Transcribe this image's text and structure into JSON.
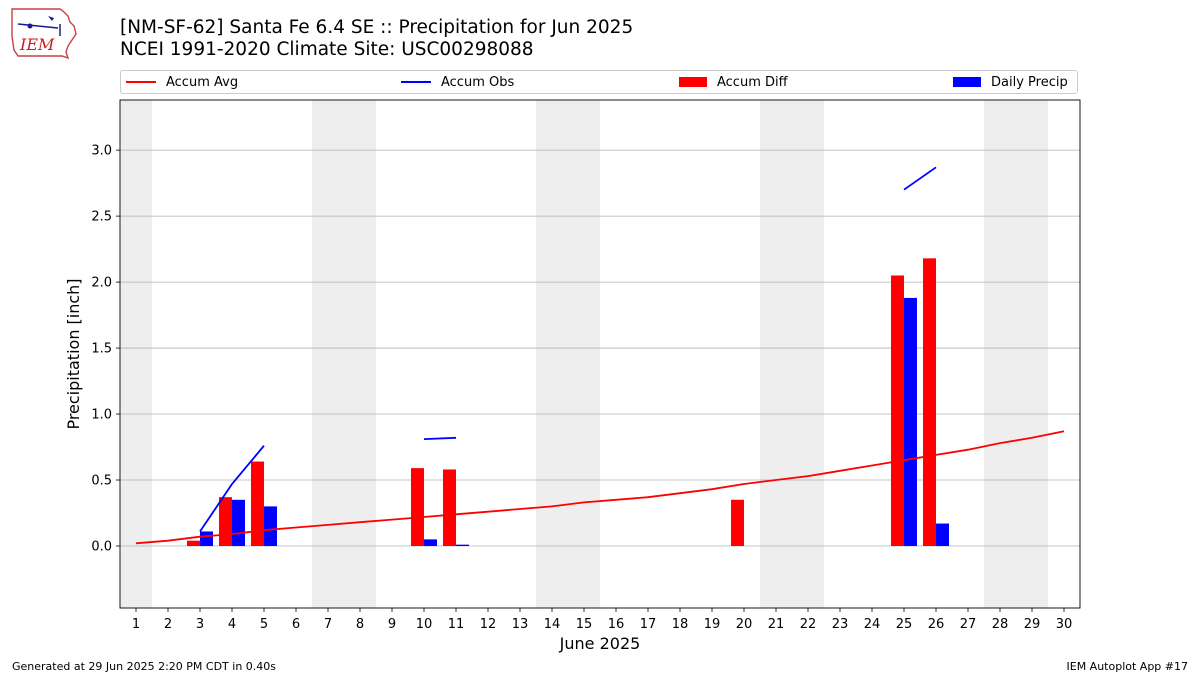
{
  "header": {
    "title_line1": "[NM-SF-62] Santa Fe 6.4 SE :: Precipitation for Jun 2025",
    "title_line2": "NCEI 1991-2020 Climate Site: USC00298088"
  },
  "logo": {
    "text": "IEM"
  },
  "footer": {
    "left": "Generated at 29 Jun 2025 2:20 PM CDT in 0.40s",
    "right": "IEM Autoplot App #17"
  },
  "colors": {
    "avg": "#ff0000",
    "obs": "#0000ff",
    "diff": "#ff0000",
    "daily": "#0000ff",
    "weekend": "#eeeeee",
    "grid": "#b0b0b0"
  },
  "chart_data": {
    "type": "bar",
    "xlabel": "June 2025",
    "ylabel": "Precipitation [inch]",
    "ylim": [
      -0.47,
      3.38
    ],
    "xlim": [
      0.5,
      30.5
    ],
    "yticks": [
      0.0,
      0.5,
      1.0,
      1.5,
      2.0,
      2.5,
      3.0
    ],
    "ytick_labels": [
      "0.0",
      "0.5",
      "1.0",
      "1.5",
      "2.0",
      "2.5",
      "3.0"
    ],
    "days": [
      1,
      2,
      3,
      4,
      5,
      6,
      7,
      8,
      9,
      10,
      11,
      12,
      13,
      14,
      15,
      16,
      17,
      18,
      19,
      20,
      21,
      22,
      23,
      24,
      25,
      26,
      27,
      28,
      29,
      30
    ],
    "xtick_labels": [
      "1",
      "2",
      "3",
      "4",
      "5",
      "6",
      "7",
      "8",
      "9",
      "10",
      "11",
      "12",
      "13",
      "14",
      "15",
      "16",
      "17",
      "18",
      "19",
      "20",
      "21",
      "22",
      "23",
      "24",
      "25",
      "26",
      "27",
      "28",
      "29",
      "30"
    ],
    "grid": "horizontal",
    "legend_position": "top",
    "weekend_shading": [
      [
        0.5,
        1.5
      ],
      [
        6.5,
        8.5
      ],
      [
        13.5,
        15.5
      ],
      [
        20.5,
        22.5
      ],
      [
        27.5,
        29.5
      ]
    ],
    "legend": [
      {
        "label": "Accum Avg",
        "kind": "line",
        "color": "#ff0000"
      },
      {
        "label": "Accum Obs",
        "kind": "line",
        "color": "#0000ff"
      },
      {
        "label": "Accum Diff",
        "kind": "patch",
        "color": "#ff0000"
      },
      {
        "label": "Daily Precip",
        "kind": "patch",
        "color": "#0000ff"
      }
    ],
    "series": [
      {
        "name": "Accum Avg",
        "type": "line",
        "values": [
          0.02,
          0.04,
          0.07,
          0.09,
          0.12,
          0.14,
          0.16,
          0.18,
          0.2,
          0.22,
          0.24,
          0.26,
          0.28,
          0.3,
          0.33,
          0.35,
          0.37,
          0.4,
          0.43,
          0.47,
          0.5,
          0.53,
          0.57,
          0.61,
          0.65,
          0.69,
          0.73,
          0.78,
          0.82,
          0.87
        ]
      },
      {
        "name": "Accum Obs",
        "type": "line",
        "values": [
          null,
          null,
          0.11,
          0.47,
          0.76,
          null,
          null,
          null,
          null,
          0.81,
          0.82,
          null,
          null,
          null,
          null,
          null,
          null,
          null,
          null,
          null,
          null,
          null,
          null,
          null,
          2.7,
          2.87,
          null,
          null,
          null,
          null
        ]
      },
      {
        "name": "Accum Diff",
        "type": "bar",
        "values": [
          0,
          0,
          0.04,
          0.37,
          0.64,
          0,
          0,
          0,
          0,
          0.59,
          0.58,
          0,
          0,
          0,
          0,
          0,
          0,
          0,
          0,
          0.35,
          0,
          0,
          0,
          0,
          2.05,
          2.18,
          0,
          0,
          0,
          0
        ]
      },
      {
        "name": "Daily Precip",
        "type": "bar",
        "values": [
          0,
          0,
          0.11,
          0.35,
          0.3,
          0,
          0,
          0,
          0,
          0.05,
          0.01,
          0,
          0,
          0,
          0,
          0,
          0,
          0,
          0,
          0,
          0,
          0,
          0,
          0,
          1.88,
          0.17,
          0,
          0,
          0,
          0
        ]
      }
    ]
  }
}
